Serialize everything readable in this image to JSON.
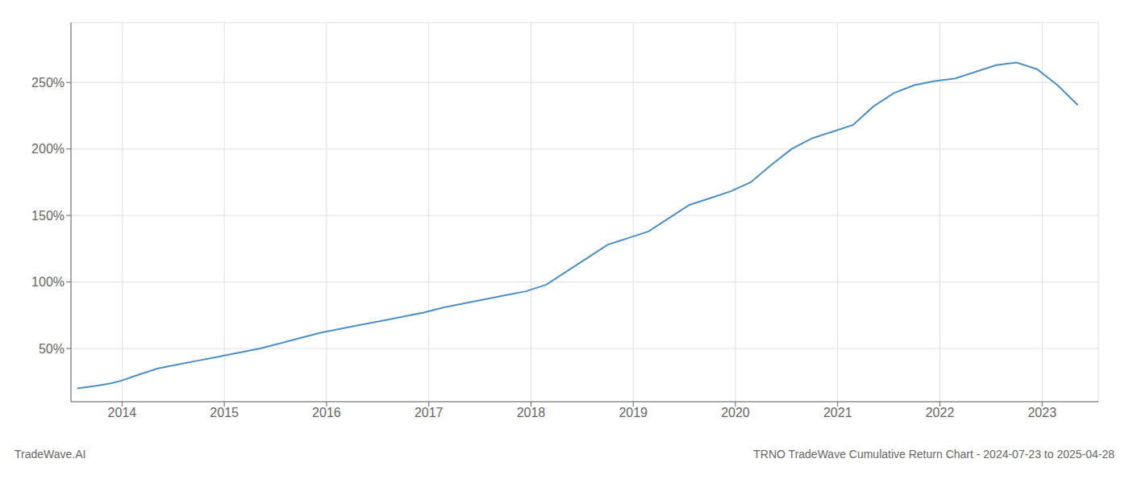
{
  "chart_data": {
    "type": "line",
    "title": "TRNO TradeWave Cumulative Return Chart - 2024-07-23 to 2025-04-28",
    "annotations": [
      "TradeWave.AI"
    ],
    "color": "#4d8fc4",
    "grid": true,
    "x": [
      2013.56,
      2013.75,
      2013.9,
      2014.0,
      2014.15,
      2014.35,
      2014.55,
      2014.75,
      2014.95,
      2015.15,
      2015.35,
      2015.55,
      2015.75,
      2015.95,
      2016.15,
      2016.35,
      2016.55,
      2016.75,
      2016.95,
      2017.15,
      2017.35,
      2017.55,
      2017.75,
      2017.95,
      2018.15,
      2018.35,
      2018.55,
      2018.75,
      2018.95,
      2019.15,
      2019.35,
      2019.55,
      2019.75,
      2019.95,
      2020.15,
      2020.35,
      2020.55,
      2020.75,
      2020.95,
      2021.15,
      2021.35,
      2021.55,
      2021.75,
      2021.95,
      2022.15,
      2022.35,
      2022.55,
      2022.75,
      2022.95,
      2023.15,
      2023.35
    ],
    "values": [
      20,
      22,
      24,
      26,
      30,
      35,
      38,
      41,
      44,
      47,
      50,
      54,
      58,
      62,
      65,
      68,
      71,
      74,
      77,
      81,
      84,
      87,
      90,
      93,
      98,
      108,
      118,
      128,
      133,
      138,
      148,
      158,
      163,
      168,
      175,
      188,
      200,
      208,
      213,
      218,
      232,
      242,
      248,
      251,
      253,
      258,
      263,
      265,
      260,
      248,
      233
    ],
    "xlim": [
      2013.5,
      2023.55
    ],
    "xticks": [
      2014,
      2015,
      2016,
      2017,
      2018,
      2019,
      2020,
      2021,
      2022,
      2023
    ],
    "ylim": [
      10,
      295
    ],
    "yticks": [
      {
        "value": 50,
        "label": "50%"
      },
      {
        "value": 100,
        "label": "100%"
      },
      {
        "value": 150,
        "label": "150%"
      },
      {
        "value": 200,
        "label": "200%"
      },
      {
        "value": 250,
        "label": "250%"
      }
    ]
  }
}
